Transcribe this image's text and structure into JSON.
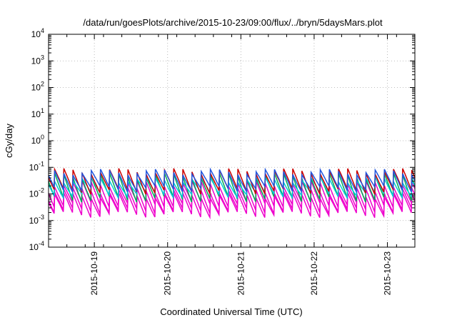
{
  "chart_data": {
    "type": "line",
    "title": "/data/run/goesPlots/archive/2015-10-23/09:00/flux/../bryn/5daysMars.plot",
    "xlabel": "Coordinated Universal Time (UTC)",
    "ylabel": "cGy/day",
    "yscale": "log",
    "ylim": [
      0.0001,
      10000
    ],
    "y_ticks": [
      {
        "base": "10",
        "exp": "-4",
        "value": 0.0001
      },
      {
        "base": "10",
        "exp": "-3",
        "value": 0.001
      },
      {
        "base": "10",
        "exp": "-2",
        "value": 0.01
      },
      {
        "base": "10",
        "exp": "-1",
        "value": 0.1
      },
      {
        "base": "10",
        "exp": "0",
        "value": 1
      },
      {
        "base": "10",
        "exp": "1",
        "value": 10
      },
      {
        "base": "10",
        "exp": "2",
        "value": 100
      },
      {
        "base": "10",
        "exp": "3",
        "value": 1000
      },
      {
        "base": "10",
        "exp": "4",
        "value": 10000
      }
    ],
    "xlim": [
      "2015-10-18 09:00",
      "2015-10-23 09:00"
    ],
    "x_ticks": [
      "2015-10-19",
      "2015-10-20",
      "2015-10-21",
      "2015-10-22",
      "2015-10-23"
    ],
    "grid": true,
    "sawtooth_period_hours": 3,
    "series": [
      {
        "color": "#cc0000",
        "peak": 0.075,
        "trough": 0.012
      },
      {
        "color": "#00aa55",
        "peak": 0.05,
        "trough": 0.006
      },
      {
        "color": "#2255dd",
        "peak": 0.07,
        "trough": 0.015
      },
      {
        "color": "#00c8d8",
        "peak": 0.035,
        "trough": 0.009
      },
      {
        "color": "#ee00cc",
        "peak": 0.025,
        "trough": 0.004
      },
      {
        "color": "#ee00cc",
        "peak": 0.014,
        "trough": 0.0022
      },
      {
        "color": "#ee00cc",
        "peak": 0.009,
        "trough": 0.0016
      }
    ]
  }
}
